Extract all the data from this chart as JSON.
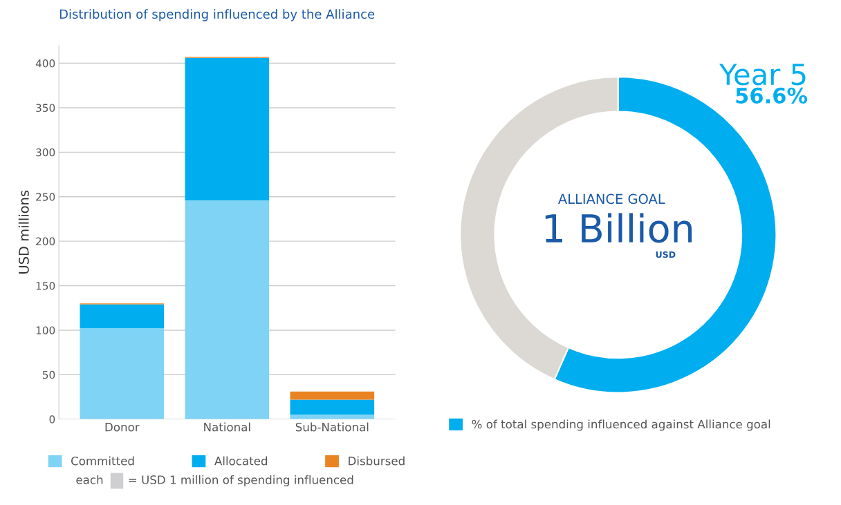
{
  "chart_data": [
    {
      "type": "bar",
      "title": "Distribution of spending influenced by the Alliance",
      "ylabel": "USD millions",
      "categories": [
        "Donor",
        "National",
        "Sub-National"
      ],
      "stacked": true,
      "series": [
        {
          "name": "Committed",
          "color": "#7fd4f6",
          "values": [
            102,
            246,
            5
          ]
        },
        {
          "name": "Allocated",
          "color": "#00aeef",
          "values": [
            27,
            160,
            17
          ]
        },
        {
          "name": "Disbursed",
          "color": "#ea8422",
          "values": [
            1,
            1,
            9
          ]
        }
      ],
      "ylim": [
        0,
        420
      ],
      "yticks": [
        0,
        50,
        100,
        150,
        200,
        250,
        300,
        350,
        400
      ],
      "grid": "y",
      "legend": "bottom",
      "annotations": [
        "each",
        "= USD 1 million of spending influenced"
      ]
    },
    {
      "type": "donut",
      "categories": [
        "% of total spending influenced against Alliance goal",
        null
      ],
      "values": [
        56.6,
        43.4
      ],
      "colors": [
        "#00aeef",
        "#dcd9d5"
      ],
      "value_labels": [
        "56.6%",
        null
      ],
      "legend": "bottom",
      "annotations": [
        "Year 5",
        "ALLIANCE GOAL",
        "1 Billion",
        "USD"
      ]
    }
  ]
}
